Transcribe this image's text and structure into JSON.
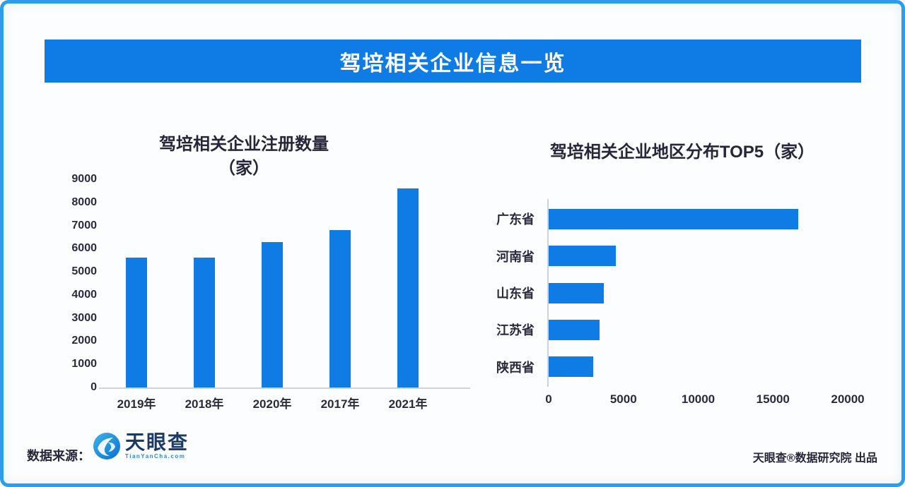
{
  "header": {
    "title": "驾培相关企业信息一览"
  },
  "colors": {
    "accent": "#0e7ce4",
    "frame_border": "#2d9ce9",
    "text_dark": "#26263a",
    "axis_line": "#ccd3dc",
    "logo_navy": "#1b3a66",
    "logo_blue": "#1c8ad6"
  },
  "chart_data": [
    {
      "type": "bar",
      "orientation": "vertical",
      "title": "驾培相关企业注册数量",
      "title_line2": "（家）",
      "categories": [
        "2019年",
        "2018年",
        "2020年",
        "2017年",
        "2021年"
      ],
      "values": [
        5600,
        5600,
        6300,
        6800,
        8600
      ],
      "xlabel": "",
      "ylabel": "",
      "ylim": [
        0,
        9000
      ],
      "ytick_step": 1000,
      "grid": false,
      "legend": "none",
      "bar_color": "#0e7ce4"
    },
    {
      "type": "bar",
      "orientation": "horizontal",
      "title": "驾培相关企业地区分布TOP5（家）",
      "categories": [
        "广东省",
        "河南省",
        "山东省",
        "江苏省",
        "陕西省"
      ],
      "values": [
        16700,
        4500,
        3700,
        3400,
        3000
      ],
      "xlabel": "",
      "ylabel": "",
      "xlim": [
        0,
        20000
      ],
      "xtick_step": 5000,
      "grid": false,
      "legend": "none",
      "bar_color": "#0e7ce4"
    }
  ],
  "footer": {
    "source_label": "数据来源：",
    "logo_name": "天眼查",
    "logo_sub": "TianYanCha.com",
    "credit": "天眼查®数据研究院 出品"
  }
}
